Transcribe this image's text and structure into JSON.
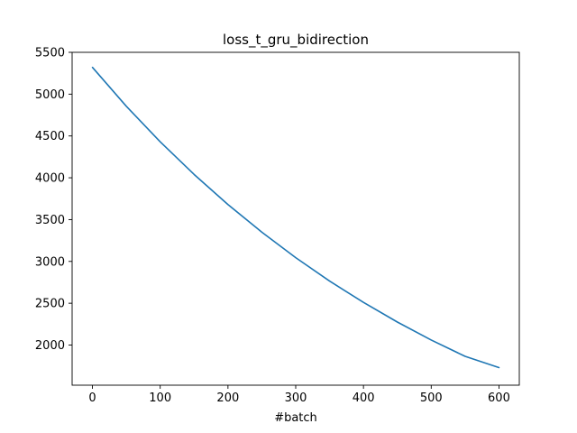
{
  "chart_data": {
    "type": "line",
    "title": "loss_t_gru_bidirection",
    "xlabel": "#batch",
    "ylabel": "",
    "xlim": [
      -30,
      630
    ],
    "ylim": [
      1520,
      5500
    ],
    "xticks": [
      0,
      100,
      200,
      300,
      400,
      500,
      600
    ],
    "yticks": [
      2000,
      2500,
      3000,
      3500,
      4000,
      4500,
      5000,
      5500
    ],
    "grid": false,
    "legend": "none",
    "series": [
      {
        "color": "#1f77b4",
        "x": [
          0,
          50,
          100,
          150,
          200,
          250,
          300,
          350,
          400,
          450,
          500,
          550,
          600
        ],
        "y": [
          5320,
          4855,
          4430,
          4040,
          3680,
          3350,
          3045,
          2765,
          2510,
          2275,
          2060,
          1865,
          1730
        ]
      }
    ]
  }
}
